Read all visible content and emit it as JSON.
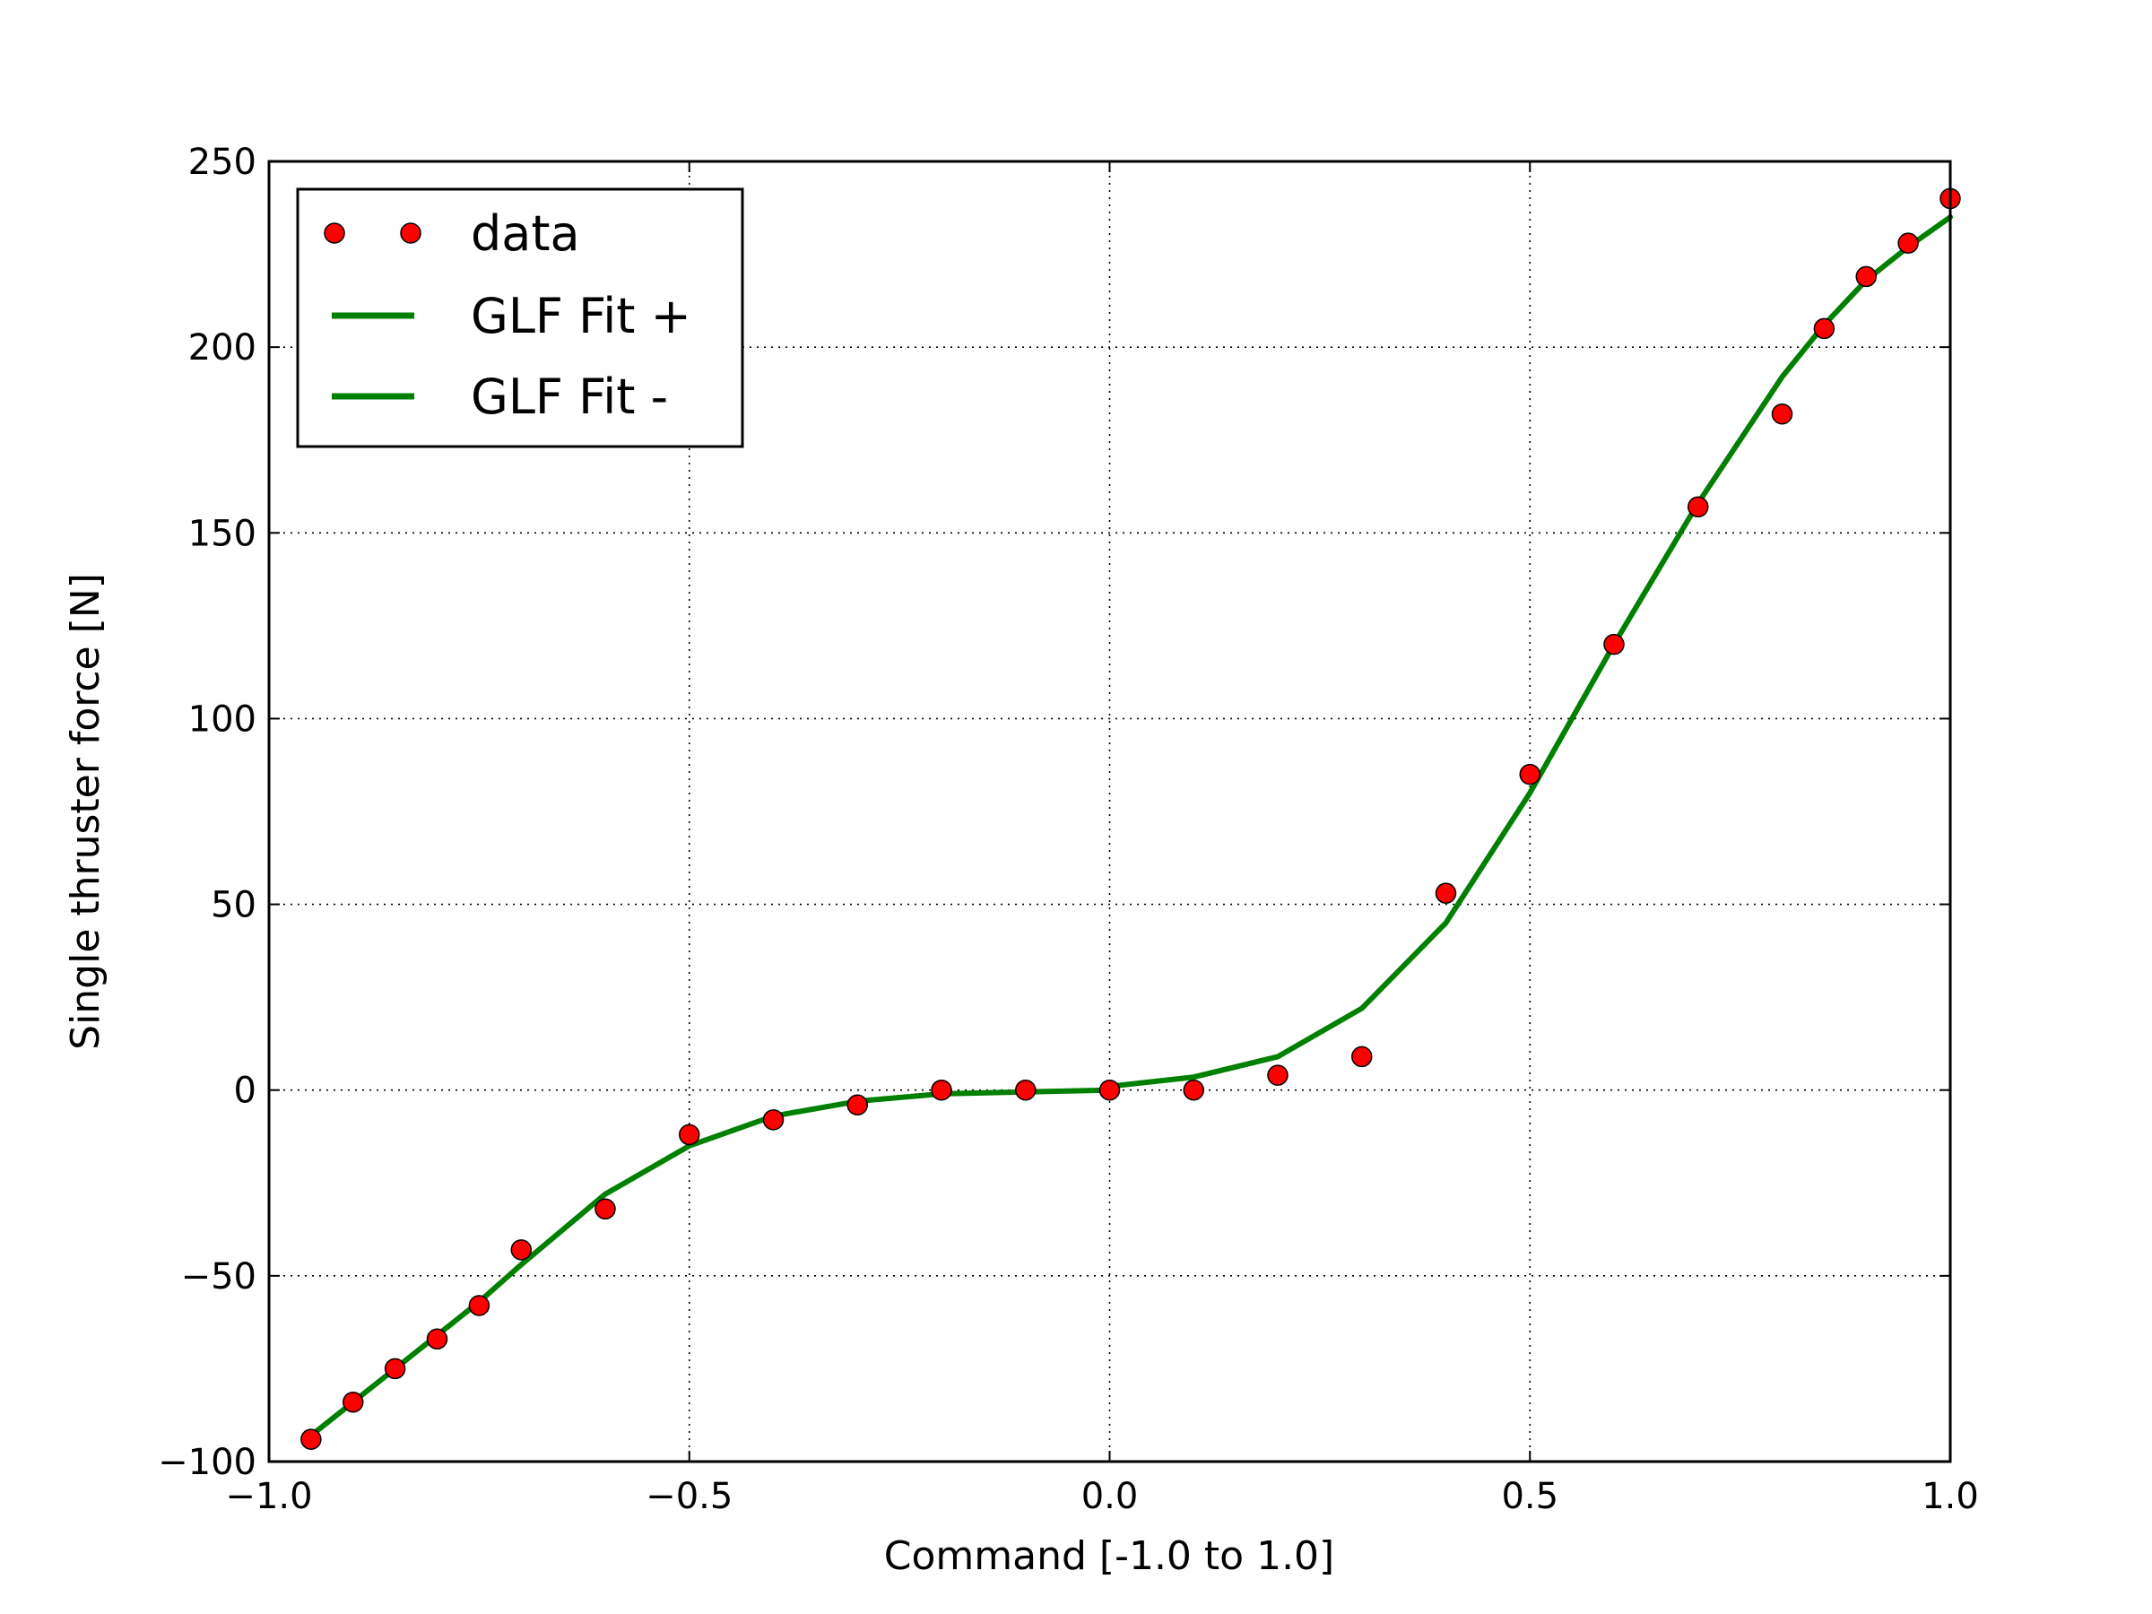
{
  "chart_data": {
    "type": "scatter",
    "xlabel": "Command [-1.0 to 1.0]",
    "ylabel": "Single thruster force [N]",
    "xlim": [
      -1.0,
      1.0
    ],
    "ylim": [
      -100,
      250
    ],
    "x_ticks": [
      -1.0,
      -0.5,
      0.0,
      0.5,
      1.0
    ],
    "x_tick_labels": [
      "−1.0",
      "−0.5",
      "0.0",
      "0.5",
      "1.0"
    ],
    "y_ticks": [
      -100,
      -50,
      0,
      50,
      100,
      150,
      200,
      250
    ],
    "y_tick_labels": [
      "−100",
      "−50",
      "0",
      "50",
      "100",
      "150",
      "200",
      "250"
    ],
    "grid": true,
    "legend_position": "upper-left",
    "series": [
      {
        "name": "data",
        "type": "scatter",
        "color": "#ff0000",
        "x": [
          -0.95,
          -0.9,
          -0.85,
          -0.8,
          -0.75,
          -0.7,
          -0.6,
          -0.5,
          -0.4,
          -0.3,
          -0.2,
          -0.1,
          0.0,
          0.1,
          0.2,
          0.3,
          0.4,
          0.5,
          0.6,
          0.7,
          0.8,
          0.85,
          0.9,
          0.95,
          1.0
        ],
        "y": [
          -94,
          -84,
          -75,
          -67,
          -58,
          -43,
          -32,
          -12,
          -8,
          -4,
          0,
          0,
          0,
          0,
          4,
          9,
          53,
          85,
          120,
          157,
          182,
          205,
          219,
          228,
          240
        ]
      },
      {
        "name": "GLF Fit +",
        "type": "line",
        "color": "#008000",
        "x": [
          0.0,
          0.1,
          0.2,
          0.3,
          0.4,
          0.5,
          0.6,
          0.7,
          0.8,
          0.85,
          0.9,
          0.95,
          1.0
        ],
        "y": [
          1,
          3.5,
          9,
          22,
          45,
          80,
          120,
          158,
          192,
          206,
          218,
          227,
          235
        ]
      },
      {
        "name": "GLF Fit -",
        "type": "line",
        "color": "#008000",
        "x": [
          -0.95,
          -0.9,
          -0.85,
          -0.8,
          -0.75,
          -0.7,
          -0.6,
          -0.5,
          -0.4,
          -0.3,
          -0.2,
          -0.1,
          0.0
        ],
        "y": [
          -93,
          -84,
          -75,
          -66,
          -57,
          -47,
          -28,
          -15,
          -7,
          -3,
          -1,
          -0.5,
          0
        ]
      }
    ]
  }
}
